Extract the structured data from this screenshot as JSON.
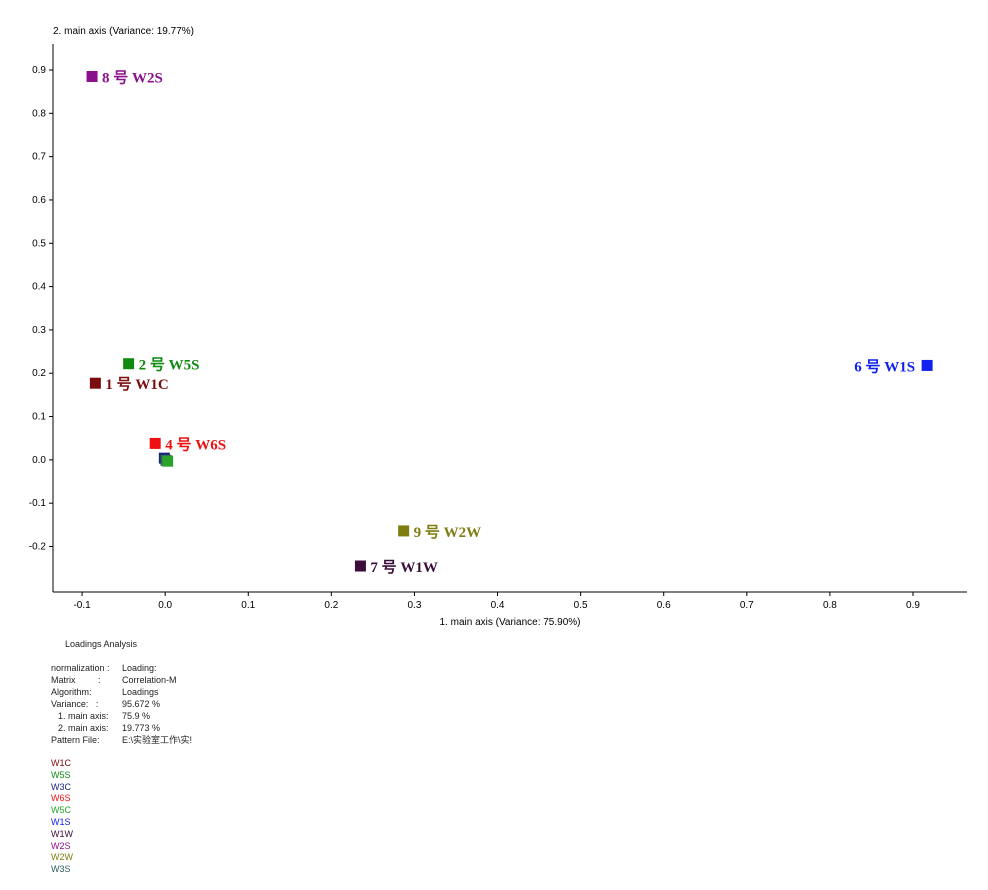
{
  "chart_data": {
    "type": "scatter",
    "title": "",
    "xlabel": "1. main axis (Variance: 75.90%)",
    "ylabel": "2. main axis (Variance: 19.77%)",
    "xlim": [
      -0.135,
      0.965
    ],
    "ylim": [
      -0.305,
      0.96
    ],
    "x_ticks": [
      -0.1,
      0.0,
      0.1,
      0.2,
      0.3,
      0.4,
      0.5,
      0.6,
      0.7,
      0.8,
      0.9
    ],
    "x_tick_labels": [
      "-0.1",
      "0.0",
      "0.1",
      "0.2",
      "0.3",
      "0.4",
      "0.5",
      "0.6",
      "0.7",
      "0.8",
      "0.9"
    ],
    "y_ticks": [
      0.9,
      0.8,
      0.7,
      0.6,
      0.5,
      0.4,
      0.3,
      0.2,
      0.1,
      0.0,
      -0.1,
      -0.2
    ],
    "y_tick_labels": [
      "0.9",
      "0.8",
      "0.7",
      "0.6",
      "0.5",
      "0.4",
      "0.3",
      "0.2",
      "0.1",
      "0.0",
      "-0.1",
      "-0.2"
    ],
    "points": [
      {
        "name": "W2S",
        "label": "8 号  W2S",
        "x": -0.088,
        "y": 0.885,
        "color": "#8b108b",
        "label_pos": "right"
      },
      {
        "name": "W5S",
        "label": "2 号 W5S",
        "x": -0.044,
        "y": 0.222,
        "color": "#118a11",
        "label_pos": "right"
      },
      {
        "name": "W1C",
        "label": "1 号  W1C",
        "x": -0.084,
        "y": 0.177,
        "color": "#7a0d0d",
        "label_pos": "right"
      },
      {
        "name": "W6S",
        "label": "4 号  W6S",
        "x": -0.012,
        "y": 0.038,
        "color": "#ee1111",
        "label_pos": "right"
      },
      {
        "name": "W3C",
        "label": "",
        "x": -0.001,
        "y": 0.004,
        "color": "#1a2478",
        "label_pos": "none"
      },
      {
        "name": "W3S",
        "label": "",
        "x": 0.001,
        "y": -0.001,
        "color": "#2f5f5f",
        "label_pos": "none"
      },
      {
        "name": "W5C",
        "label": "",
        "x": 0.003,
        "y": -0.003,
        "color": "#29a329",
        "label_pos": "none"
      },
      {
        "name": "W1S",
        "label": "6 号 W1S",
        "x": 0.917,
        "y": 0.218,
        "color": "#1122ee",
        "label_pos": "left"
      },
      {
        "name": "W2W",
        "label": "9 号  W2W",
        "x": 0.287,
        "y": -0.164,
        "color": "#7d7d10",
        "label_pos": "right"
      },
      {
        "name": "W1W",
        "label": "7 号  W1W",
        "x": 0.235,
        "y": -0.245,
        "color": "#3a0d3a",
        "label_pos": "right"
      }
    ]
  },
  "info": {
    "title": "Loadings Analysis",
    "rows": [
      {
        "key": "normalization :",
        "value": "Loading:",
        "indent": false
      },
      {
        "key": "Matrix         :",
        "value": "Correlation-M",
        "indent": false
      },
      {
        "key": "Algorithm:",
        "value": "Loadings",
        "indent": false
      },
      {
        "key": "Variance:   :",
        "value": "95.672 %",
        "indent": false
      },
      {
        "key": "1. main axis:",
        "value": "75.9 %",
        "indent": true
      },
      {
        "key": "2. main axis:",
        "value": "19.773 %",
        "indent": true
      },
      {
        "key": "Pattern File:",
        "value": "E:\\实验室工作\\实!",
        "indent": false
      }
    ]
  },
  "legend": [
    {
      "text": "W1C",
      "color": "#7a0d0d"
    },
    {
      "text": "W5S",
      "color": "#118a11"
    },
    {
      "text": "W3C",
      "color": "#1a2478"
    },
    {
      "text": "W6S",
      "color": "#ee1111"
    },
    {
      "text": "W5C",
      "color": "#29a329"
    },
    {
      "text": "W1S",
      "color": "#1122ee"
    },
    {
      "text": "W1W",
      "color": "#3a0d3a"
    },
    {
      "text": "W2S",
      "color": "#8b108b"
    },
    {
      "text": "W2W",
      "color": "#7d7d10"
    },
    {
      "text": "W3S",
      "color": "#2f5f5f"
    }
  ]
}
